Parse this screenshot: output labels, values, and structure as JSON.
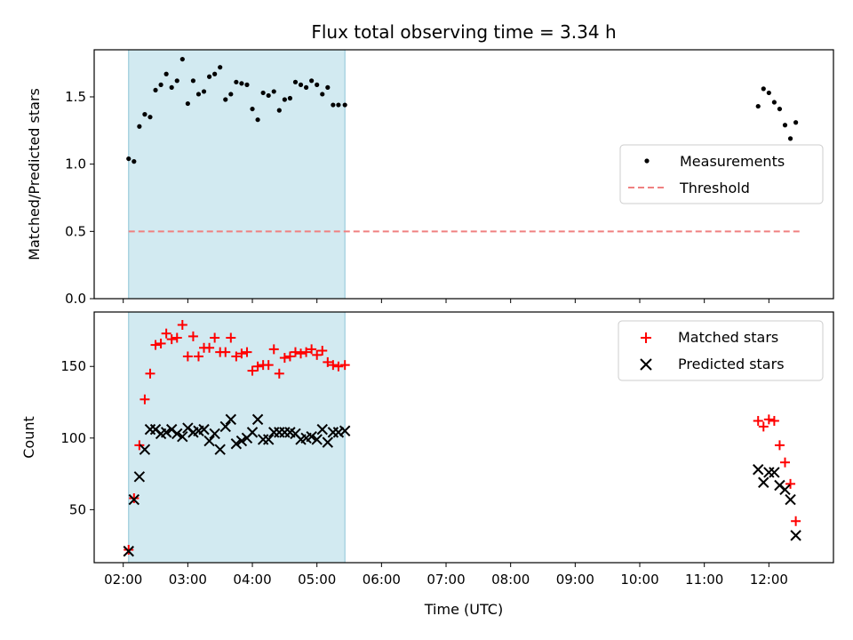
{
  "chart_data": [
    {
      "type": "scatter",
      "title": "Flux total observing time = 3.34 h",
      "xlabel": "",
      "ylabel": "Matched/Predicted stars",
      "ylim": [
        0.0,
        1.85
      ],
      "yticks": [
        0.0,
        0.5,
        1.0,
        1.5
      ],
      "yticklabels": [
        "0.0",
        "0.5",
        "1.0",
        "1.5"
      ],
      "x_unit": "hours (UTC)",
      "xlim": [
        1.55,
        13.0
      ],
      "shaded_interval": {
        "start": "02:05",
        "end": "05:26",
        "color": "#add8e6"
      },
      "legend_position": "center-right",
      "series": [
        {
          "name": "Measurements",
          "marker": "dot",
          "color": "#000000",
          "x": [
            "02:05",
            "02:10",
            "02:15",
            "02:20",
            "02:25",
            "02:30",
            "02:35",
            "02:40",
            "02:45",
            "02:50",
            "02:55",
            "03:00",
            "03:05",
            "03:10",
            "03:15",
            "03:20",
            "03:25",
            "03:30",
            "03:35",
            "03:40",
            "03:45",
            "03:50",
            "03:55",
            "04:00",
            "04:05",
            "04:10",
            "04:15",
            "04:20",
            "04:25",
            "04:30",
            "04:35",
            "04:40",
            "04:45",
            "04:50",
            "04:55",
            "05:00",
            "05:05",
            "05:10",
            "05:15",
            "05:20",
            "05:26",
            "11:50",
            "11:55",
            "12:00",
            "12:05",
            "12:10",
            "12:15",
            "12:20",
            "12:25"
          ],
          "y": [
            1.04,
            1.02,
            1.28,
            1.37,
            1.35,
            1.55,
            1.59,
            1.67,
            1.57,
            1.62,
            1.78,
            1.45,
            1.62,
            1.52,
            1.54,
            1.65,
            1.67,
            1.72,
            1.48,
            1.52,
            1.61,
            1.6,
            1.59,
            1.41,
            1.33,
            1.53,
            1.51,
            1.54,
            1.4,
            1.48,
            1.49,
            1.61,
            1.59,
            1.57,
            1.62,
            1.59,
            1.52,
            1.57,
            1.44,
            1.44,
            1.44,
            1.43,
            1.56,
            1.53,
            1.46,
            1.41,
            1.29,
            1.19,
            1.31
          ]
        },
        {
          "name": "Threshold",
          "style": "dashed",
          "color": "#f08080",
          "x": [
            "02:05",
            "12:30"
          ],
          "y": [
            0.5,
            0.5
          ]
        }
      ]
    },
    {
      "type": "scatter",
      "title": "",
      "xlabel": "Time (UTC)",
      "ylabel": "Count",
      "ylim": [
        13,
        188
      ],
      "yticks": [
        50,
        100,
        150
      ],
      "yticklabels": [
        "50",
        "100",
        "150"
      ],
      "x_unit": "hours (UTC)",
      "xlim": [
        1.55,
        13.0
      ],
      "xticks": [
        "02:00",
        "03:00",
        "04:00",
        "05:00",
        "06:00",
        "07:00",
        "08:00",
        "09:00",
        "10:00",
        "11:00",
        "12:00"
      ],
      "shaded_interval": {
        "start": "02:05",
        "end": "05:26",
        "color": "#add8e6"
      },
      "legend_position": "top-right",
      "series": [
        {
          "name": "Matched stars",
          "marker": "plus",
          "color": "#ff0000",
          "x": [
            "02:05",
            "02:10",
            "02:15",
            "02:20",
            "02:25",
            "02:30",
            "02:35",
            "02:40",
            "02:45",
            "02:50",
            "02:55",
            "03:00",
            "03:05",
            "03:10",
            "03:15",
            "03:20",
            "03:25",
            "03:30",
            "03:35",
            "03:40",
            "03:45",
            "03:50",
            "03:55",
            "04:00",
            "04:05",
            "04:10",
            "04:15",
            "04:20",
            "04:25",
            "04:30",
            "04:35",
            "04:40",
            "04:45",
            "04:50",
            "04:55",
            "05:00",
            "05:05",
            "05:10",
            "05:15",
            "05:20",
            "05:26",
            "11:50",
            "11:55",
            "12:00",
            "12:05",
            "12:10",
            "12:15",
            "12:20",
            "12:25"
          ],
          "y": [
            22,
            58,
            95,
            127,
            145,
            165,
            166,
            173,
            169,
            170,
            179,
            157,
            171,
            157,
            163,
            163,
            170,
            160,
            160,
            170,
            157,
            159,
            160,
            147,
            150,
            151,
            151,
            162,
            145,
            156,
            157,
            160,
            159,
            160,
            162,
            158,
            161,
            153,
            151,
            150,
            151,
            112,
            108,
            113,
            112,
            95,
            83,
            68,
            42
          ]
        },
        {
          "name": "Predicted stars",
          "marker": "x",
          "color": "#000000",
          "x": [
            "02:05",
            "02:10",
            "02:15",
            "02:20",
            "02:25",
            "02:30",
            "02:35",
            "02:40",
            "02:45",
            "02:50",
            "02:55",
            "03:00",
            "03:05",
            "03:10",
            "03:15",
            "03:20",
            "03:25",
            "03:30",
            "03:35",
            "03:40",
            "03:45",
            "03:50",
            "03:55",
            "04:00",
            "04:05",
            "04:10",
            "04:15",
            "04:20",
            "04:25",
            "04:30",
            "04:35",
            "04:40",
            "04:45",
            "04:50",
            "04:55",
            "05:00",
            "05:05",
            "05:10",
            "05:15",
            "05:20",
            "05:26",
            "11:50",
            "11:55",
            "12:00",
            "12:05",
            "12:10",
            "12:15",
            "12:20",
            "12:25"
          ],
          "y": [
            21,
            57,
            73,
            92,
            106,
            106,
            103,
            104,
            106,
            103,
            101,
            107,
            104,
            105,
            106,
            98,
            103,
            92,
            108,
            113,
            96,
            98,
            100,
            104,
            113,
            99,
            99,
            104,
            104,
            104,
            104,
            103,
            99,
            100,
            101,
            99,
            106,
            97,
            104,
            104,
            105,
            78,
            69,
            76,
            76,
            67,
            64,
            57,
            32
          ]
        }
      ]
    }
  ]
}
